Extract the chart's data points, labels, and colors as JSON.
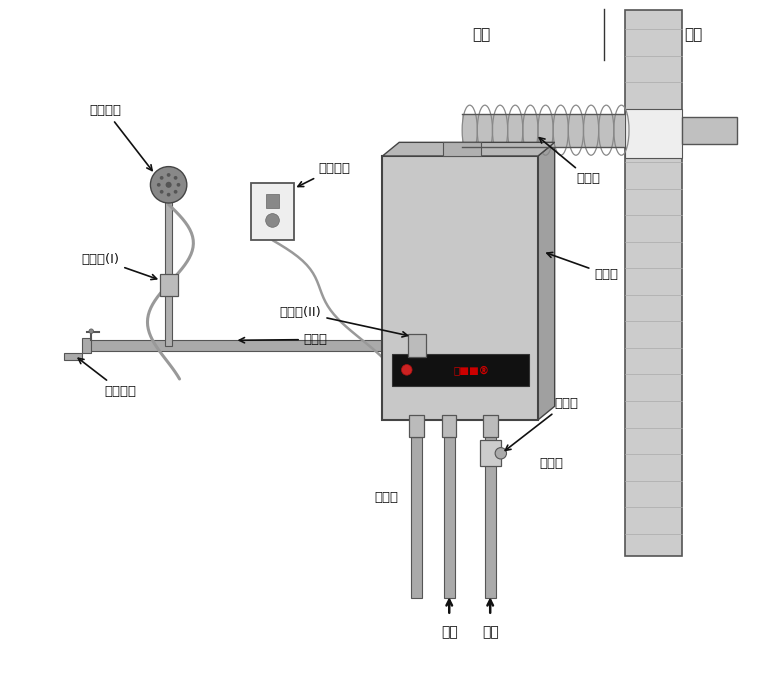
{
  "bg_color": "#ffffff",
  "line_color": "#333333",
  "pipe_color": "#aaaaaa",
  "pipe_outline": "#555555",
  "heater_body": "#c8c8c8",
  "heater_side": "#a8a8a8",
  "heater_top": "#bbbbbb",
  "wall_color": "#cccccc",
  "panel_color": "#111111",
  "brand_color": "#cc0000",
  "outlet_color": "#f0f0f0",
  "labels": {
    "shower_head": "淋浴喷头",
    "hot_valve1": "热水阀(I)",
    "hot_valve2": "热水阀(II)",
    "hot_pipe": "热水管",
    "hot_tap": "热水龙头",
    "power_plug": "电源插头",
    "heater": "热水器",
    "exhaust": "排烟管",
    "indoor": "室内",
    "outdoor": "室外",
    "gas_pipe": "燃气管",
    "cold_valve": "冷水阀",
    "cold_pipe": "冷水管",
    "gas_source": "气源",
    "water_source": "水源"
  },
  "figsize": [
    7.65,
    6.73
  ],
  "dpi": 100
}
